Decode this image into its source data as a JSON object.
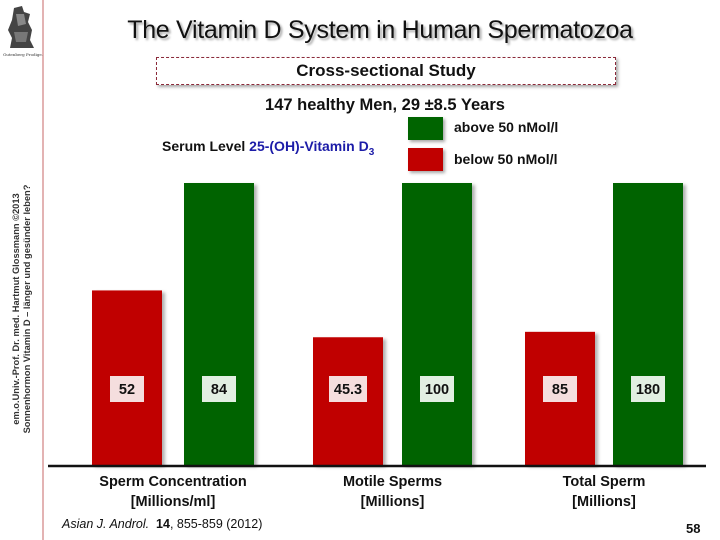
{
  "slide": {
    "title": "The Vitamin D System in Human Spermatozoa",
    "subtitle": "Cross-sectional Study",
    "cohort": "147 healthy Men, 29 ±8.5 Years",
    "serum_prefix": "Serum Level ",
    "serum_highlight": "25-(OH)-Vitamin D",
    "serum_sub": "3",
    "side_line1": "em.o.Univ.-Prof. Dr. med. Hartmut Glossmann ©2013",
    "side_line2": "Sonnenhormon Vitamin D – länger und gesünder leben?",
    "logo_caption": "Gutenberg Prodige.",
    "footer_journal": "Asian J. Androl.",
    "footer_volume": "14",
    "footer_rest": ", 855-859 (2012)",
    "page_number": "58"
  },
  "colors": {
    "above": "#006400",
    "below": "#c00000",
    "label_bg_below": "#f5dede",
    "label_bg_above": "#e2efe2",
    "serum_blue": "#1c1ca8"
  },
  "chart_data": {
    "type": "bar",
    "title": "",
    "xlabel": "",
    "ylabel": "",
    "normalization": "each category scaled to its own maximum (bars not on common axis)",
    "categories": [
      {
        "line1": "Sperm Concentration",
        "line2": "[Millions/ml]"
      },
      {
        "line1": "Motile Sperms",
        "line2": "[Millions]"
      },
      {
        "line1": "Total Sperm",
        "line2": "[Millions]"
      }
    ],
    "series": [
      {
        "name": "below 50 nMol/l",
        "key": "below",
        "values": [
          52,
          45.3,
          85
        ],
        "labels": [
          "52",
          "45.3",
          "85"
        ]
      },
      {
        "name": "above 50 nMol/l",
        "key": "above",
        "values": [
          84,
          100,
          180
        ],
        "labels": [
          "84",
          "100",
          "180"
        ]
      }
    ],
    "legend": {
      "position": "top-right",
      "items": [
        "above 50 nMol/l",
        "below 50 nMol/l"
      ]
    },
    "grid": false
  }
}
